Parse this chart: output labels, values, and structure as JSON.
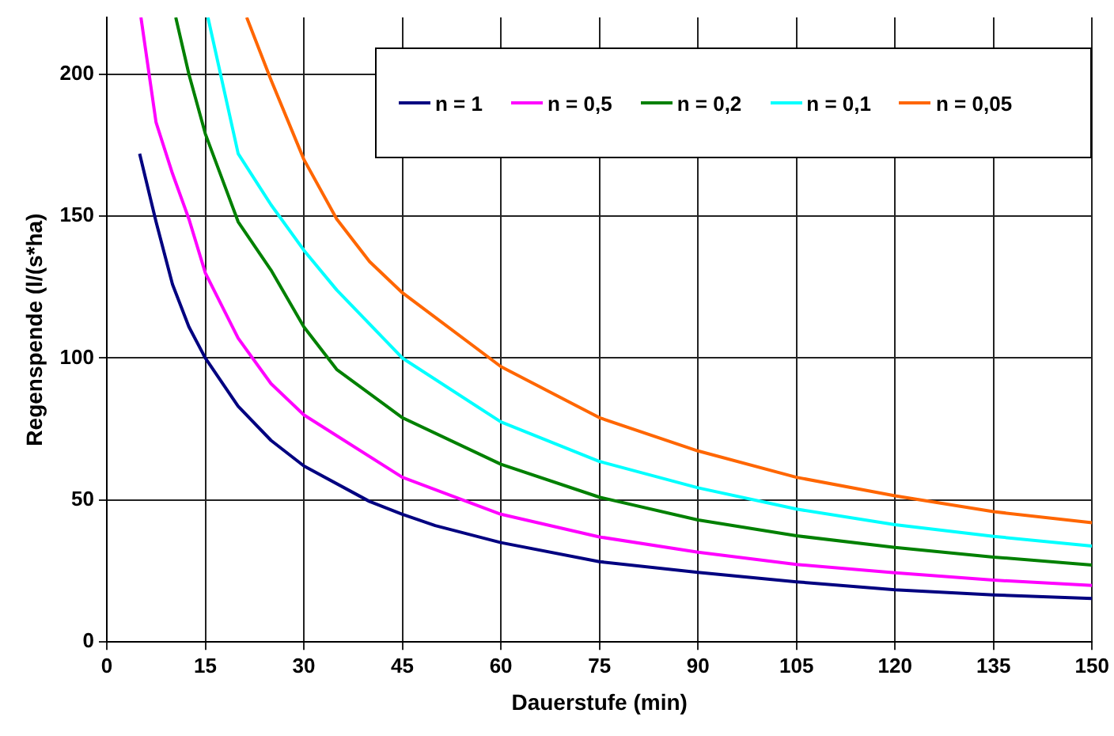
{
  "chart_data": {
    "type": "line",
    "xlabel": "Dauerstufe (min)",
    "ylabel": "Regenspende (l/(s*ha)",
    "xlim": [
      0,
      150
    ],
    "xticks": [
      0,
      15,
      30,
      45,
      60,
      75,
      90,
      105,
      120,
      135,
      150
    ],
    "ylim": [
      0,
      220
    ],
    "yticks": [
      0,
      50,
      100,
      150,
      200
    ],
    "grid": true,
    "legend": "top right",
    "marker": "none",
    "line_style": "solid",
    "series": [
      {
        "name": "n = 1",
        "color": "#000080",
        "x": [
          5,
          7.5,
          10,
          12.5,
          15,
          20,
          25,
          30,
          40,
          45,
          50,
          60,
          75,
          90,
          105,
          120,
          135,
          150
        ],
        "values": [
          172,
          148,
          126,
          111,
          100,
          83,
          71,
          62,
          49.5,
          45,
          41,
          35,
          28.3,
          24.5,
          21.2,
          18.4,
          16.6,
          15.3
        ]
      },
      {
        "name": "n = 0,5",
        "color": "#ff00ff",
        "x": [
          5.2,
          7.5,
          10,
          12.5,
          15,
          20,
          25,
          30,
          45,
          60,
          75,
          90,
          105,
          120,
          135,
          150
        ],
        "values": [
          220,
          183,
          165,
          149,
          130,
          107,
          91,
          80,
          58,
          45,
          37,
          31.6,
          27.3,
          24.4,
          21.8,
          19.9
        ]
      },
      {
        "name": "n = 0,2",
        "color": "#008000",
        "x": [
          10.5,
          12.5,
          15,
          20,
          25,
          30,
          35,
          45,
          60,
          75,
          90,
          105,
          120,
          135,
          150
        ],
        "values": [
          220,
          200,
          179,
          148,
          131,
          111,
          96,
          79,
          62.6,
          51,
          43,
          37.4,
          33.3,
          29.9,
          27.1
        ]
      },
      {
        "name": "n = 0,1",
        "color": "#00ffff",
        "x": [
          15.4,
          20,
          25,
          30,
          35,
          45,
          60,
          75,
          90,
          105,
          120,
          135,
          150
        ],
        "values": [
          220,
          172,
          154,
          138,
          124,
          100,
          77.5,
          63.6,
          54.3,
          46.8,
          41.3,
          37.2,
          33.8
        ]
      },
      {
        "name": "n = 0,05",
        "color": "#ff6600",
        "x": [
          21.3,
          25,
          30,
          35,
          40,
          45,
          60,
          75,
          90,
          105,
          120,
          135,
          150
        ],
        "values": [
          220,
          198,
          170,
          149,
          134,
          123,
          97,
          79,
          67.3,
          58,
          51.5,
          45.9,
          42
        ]
      }
    ]
  }
}
